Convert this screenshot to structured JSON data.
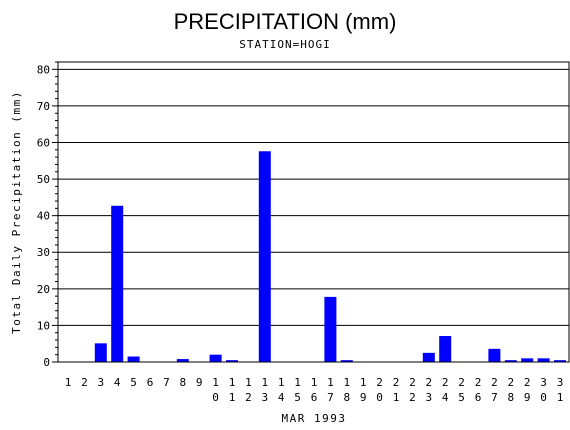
{
  "chart_data": {
    "type": "bar",
    "title": "PRECIPITATION (mm)",
    "subtitle": "STATION=HOGI",
    "xlabel": "MAR 1993",
    "ylabel": "Total Daily Precipitation (mm)",
    "ylim": [
      0,
      82
    ],
    "yticks": [
      0,
      10,
      20,
      30,
      40,
      50,
      60,
      70,
      80
    ],
    "grid": true,
    "bar_color": "#0000ff",
    "categories": [
      "1",
      "2",
      "3",
      "4",
      "5",
      "6",
      "7",
      "8",
      "9",
      "10",
      "11",
      "12",
      "13",
      "14",
      "15",
      "16",
      "17",
      "18",
      "19",
      "20",
      "21",
      "22",
      "23",
      "24",
      "25",
      "26",
      "27",
      "28",
      "29",
      "30",
      "31"
    ],
    "values": [
      0,
      0,
      5.1,
      42.7,
      1.5,
      0,
      0,
      0.8,
      0,
      2.0,
      0.5,
      0,
      57.6,
      0,
      0,
      0,
      17.8,
      0.5,
      0,
      0,
      0,
      0,
      2.5,
      7.1,
      0,
      0,
      3.6,
      0.5,
      1.0,
      1.0,
      0.5
    ]
  }
}
